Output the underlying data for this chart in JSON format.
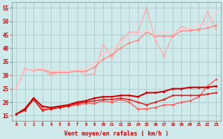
{
  "background_color": "#ceeaea",
  "grid_color": "#aecece",
  "xlabel": "Vent moyen/en rafales ( km/h )",
  "yticks": [
    15,
    20,
    25,
    30,
    35,
    40,
    45,
    50,
    55
  ],
  "xlim": [
    -0.5,
    23.5
  ],
  "ylim": [
    13,
    57
  ],
  "xtick_labels": [
    "0",
    "1",
    "2",
    "3",
    "4",
    "5",
    "6",
    "7",
    "8",
    "9",
    "10",
    "11",
    "12",
    "13",
    "14",
    "15",
    "16",
    "17",
    "18",
    "19",
    "20",
    "21",
    "22",
    "23"
  ],
  "series": [
    {
      "color": "#ff5555",
      "alpha": 1.0,
      "linewidth": 1.0,
      "markersize": 2.0,
      "y": [
        15.5,
        17.5,
        21.0,
        17.5,
        17.5,
        18.0,
        18.5,
        19.0,
        19.5,
        19.5,
        20.5,
        20.0,
        21.0,
        20.0,
        17.5,
        17.5,
        18.0,
        19.0,
        19.0,
        20.0,
        20.5,
        22.0,
        26.0,
        28.5
      ]
    },
    {
      "color": "#dd2222",
      "alpha": 1.0,
      "linewidth": 1.2,
      "markersize": 2.0,
      "y": [
        15.5,
        17.0,
        21.0,
        17.0,
        17.5,
        18.0,
        18.5,
        19.5,
        20.0,
        20.5,
        21.0,
        21.0,
        21.5,
        21.0,
        20.0,
        19.0,
        20.0,
        21.0,
        22.5,
        22.5,
        22.5,
        22.5,
        23.0,
        23.5
      ]
    },
    {
      "color": "#cc0000",
      "alpha": 1.0,
      "linewidth": 1.5,
      "markersize": 2.0,
      "y": [
        15.5,
        17.5,
        21.5,
        18.5,
        18.0,
        18.5,
        19.0,
        20.0,
        20.5,
        21.5,
        22.0,
        22.0,
        22.5,
        22.5,
        22.0,
        23.5,
        23.5,
        24.0,
        25.0,
        25.0,
        25.5,
        25.5,
        25.5,
        26.0
      ]
    },
    {
      "color": "#ffaaaa",
      "alpha": 1.0,
      "linewidth": 1.0,
      "markersize": 2.0,
      "y": [
        25.0,
        32.5,
        31.5,
        32.5,
        30.0,
        31.5,
        31.5,
        32.0,
        30.0,
        30.5,
        41.5,
        36.5,
        43.0,
        46.0,
        46.0,
        55.0,
        43.0,
        37.0,
        45.0,
        48.0,
        47.0,
        46.5,
        53.5,
        47.0
      ]
    },
    {
      "color": "#ff8888",
      "alpha": 1.0,
      "linewidth": 1.0,
      "markersize": 2.0,
      "y": [
        25.0,
        32.0,
        32.0,
        32.0,
        31.0,
        31.0,
        31.0,
        31.5,
        31.5,
        33.0,
        36.0,
        37.5,
        40.0,
        42.0,
        43.0,
        46.0,
        44.5,
        44.5,
        44.5,
        46.5,
        46.5,
        47.0,
        47.5,
        48.5
      ]
    },
    {
      "color": "#ffcccc",
      "alpha": 1.0,
      "linewidth": 1.0,
      "markersize": 2.0,
      "y": [
        25.0,
        32.0,
        32.0,
        32.5,
        31.5,
        31.5,
        31.5,
        32.0,
        32.5,
        34.5,
        38.0,
        39.5,
        42.5,
        44.5,
        45.5,
        46.5,
        45.0,
        46.0,
        45.5,
        47.0,
        47.5,
        48.5,
        49.0,
        53.5
      ]
    }
  ]
}
